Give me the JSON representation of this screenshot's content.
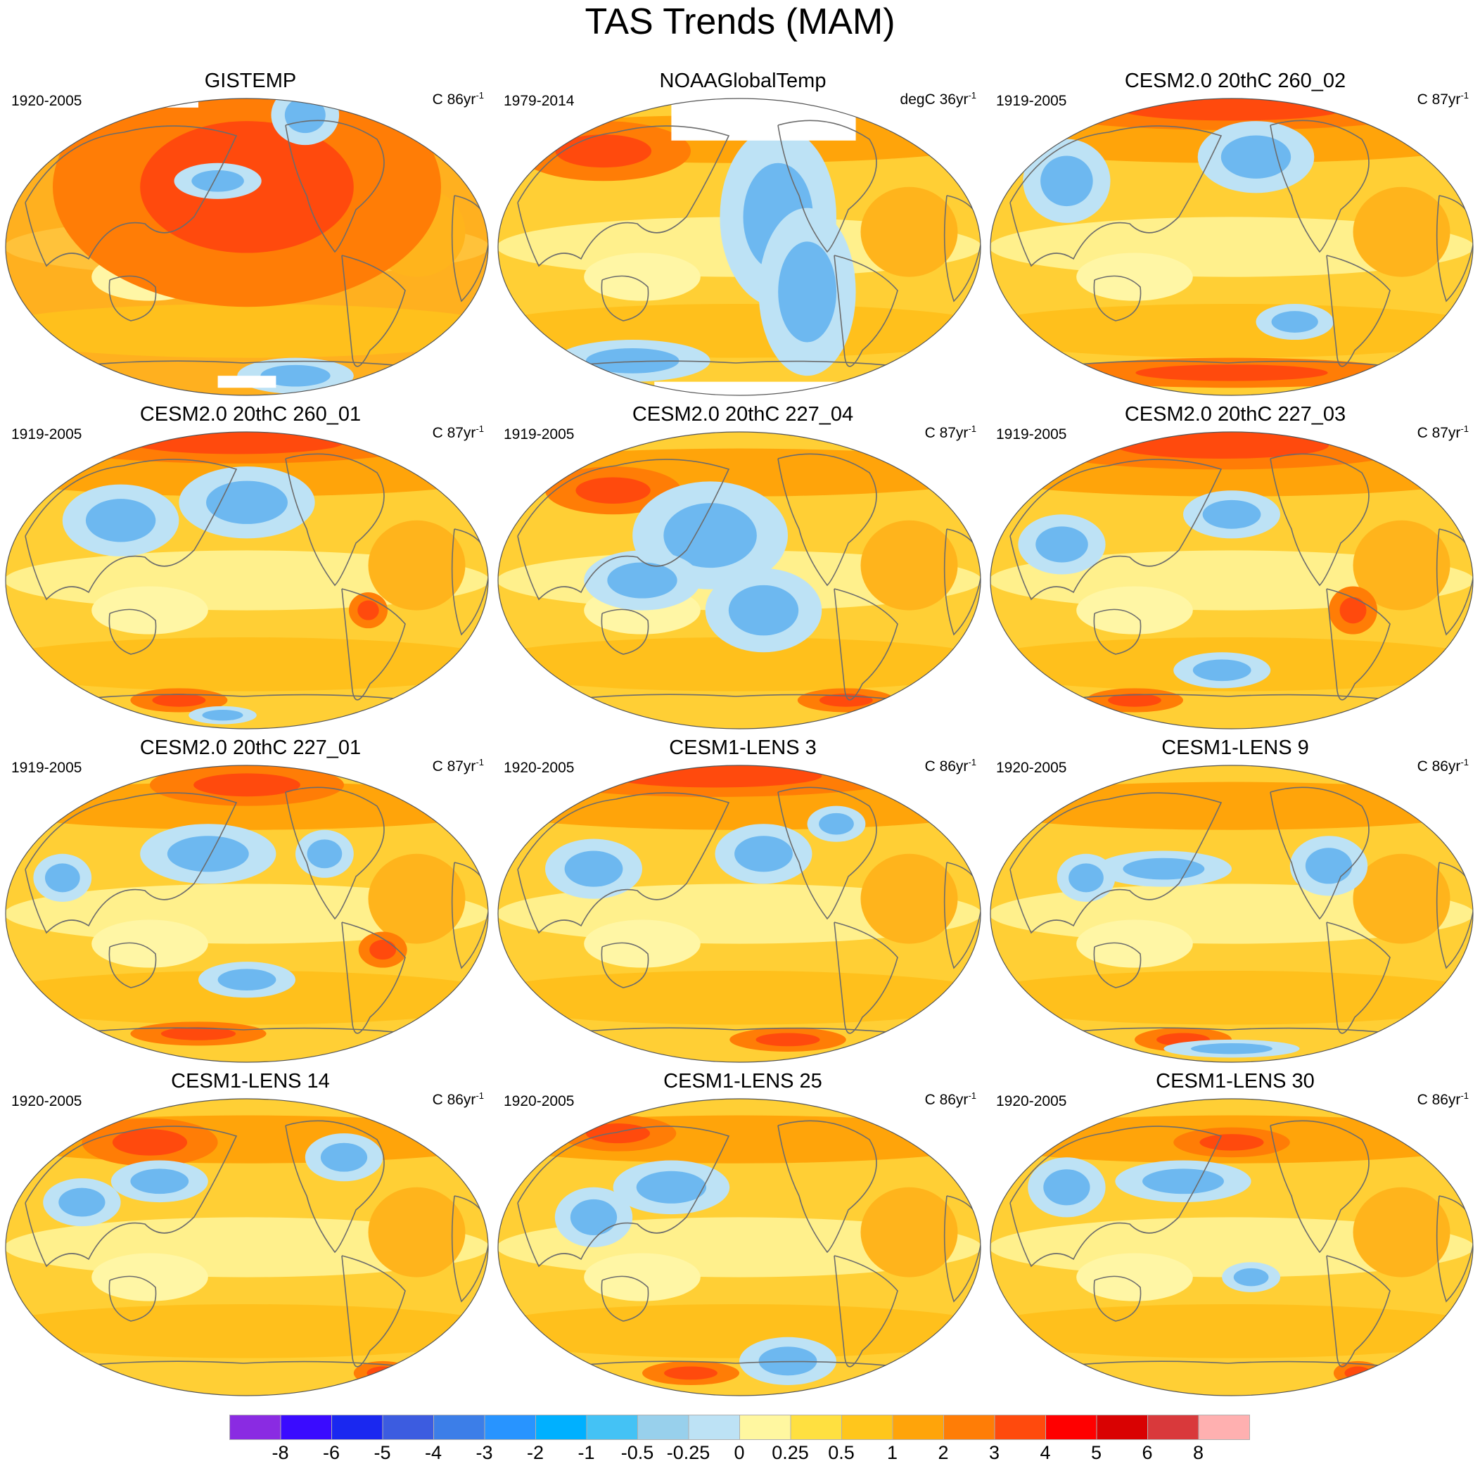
{
  "title": "TAS Trends (MAM)",
  "panels": [
    {
      "title": "GISTEMP",
      "period": "1920-2005",
      "units": "C 86yr",
      "exp": "-1",
      "style": "warm",
      "cool": [
        [
          0.62,
          0.06,
          0.07,
          0.1
        ],
        [
          0.44,
          0.28,
          0.09,
          0.06
        ],
        [
          0.6,
          0.93,
          0.12,
          0.06
        ],
        [
          0.88,
          0.93,
          0.09,
          0.05
        ]
      ],
      "hot": [
        [
          0.5,
          0.3,
          0.4,
          0.4
        ]
      ],
      "missing": [
        [
          0.36,
          0.005,
          0.08,
          0.03
        ],
        [
          0.5,
          0.93,
          0.12,
          0.04
        ],
        [
          0.92,
          0.92,
          0.05,
          0.03
        ]
      ]
    },
    {
      "title": "NOAAGlobalTemp",
      "period": "1979-2014",
      "units": "degC 36yr",
      "exp": "-1",
      "style": "mixed",
      "cool": [
        [
          0.58,
          0.4,
          0.12,
          0.3
        ],
        [
          0.64,
          0.65,
          0.1,
          0.28
        ],
        [
          0.28,
          0.88,
          0.16,
          0.07
        ]
      ],
      "hot": [
        [
          0.22,
          0.18,
          0.18,
          0.1
        ]
      ],
      "missing": [
        [
          0.55,
          0.005,
          0.38,
          0.14
        ],
        [
          0.55,
          0.95,
          0.45,
          0.1
        ]
      ]
    },
    {
      "title": "CESM2.0 20thC 260_02",
      "period": "1919-2005",
      "units": "C 87yr",
      "exp": "-1",
      "style": "mixed",
      "cool": [
        [
          0.16,
          0.28,
          0.09,
          0.14
        ],
        [
          0.55,
          0.2,
          0.12,
          0.12
        ],
        [
          0.63,
          0.75,
          0.08,
          0.06
        ]
      ],
      "hot": [
        [
          0.5,
          0.04,
          0.42,
          0.07
        ],
        [
          0.5,
          0.92,
          0.36,
          0.05
        ]
      ],
      "missing": []
    },
    {
      "title": "CESM2.0 20thC 260_01",
      "period": "1919-2005",
      "units": "C 87yr",
      "exp": "-1",
      "style": "mixed",
      "cool": [
        [
          0.24,
          0.3,
          0.12,
          0.12
        ],
        [
          0.5,
          0.24,
          0.14,
          0.12
        ],
        [
          0.45,
          0.95,
          0.07,
          0.03
        ]
      ],
      "hot": [
        [
          0.48,
          0.04,
          0.4,
          0.07
        ],
        [
          0.36,
          0.9,
          0.1,
          0.04
        ],
        [
          0.75,
          0.6,
          0.04,
          0.06
        ]
      ],
      "missing": []
    },
    {
      "title": "CESM2.0 20thC 227_04",
      "period": "1919-2005",
      "units": "C 87yr",
      "exp": "-1",
      "style": "mixed",
      "cool": [
        [
          0.44,
          0.35,
          0.16,
          0.18
        ],
        [
          0.55,
          0.6,
          0.12,
          0.14
        ],
        [
          0.3,
          0.5,
          0.12,
          0.1
        ]
      ],
      "hot": [
        [
          0.24,
          0.2,
          0.14,
          0.08
        ],
        [
          0.72,
          0.9,
          0.1,
          0.04
        ]
      ],
      "missing": []
    },
    {
      "title": "CESM2.0 20thC 227_03",
      "period": "1919-2005",
      "units": "C 87yr",
      "exp": "-1",
      "style": "mixed",
      "cool": [
        [
          0.5,
          0.28,
          0.1,
          0.08
        ],
        [
          0.15,
          0.38,
          0.09,
          0.1
        ],
        [
          0.48,
          0.8,
          0.1,
          0.06
        ]
      ],
      "hot": [
        [
          0.48,
          0.05,
          0.4,
          0.08
        ],
        [
          0.3,
          0.9,
          0.1,
          0.04
        ],
        [
          0.75,
          0.6,
          0.05,
          0.08
        ]
      ],
      "missing": []
    },
    {
      "title": "CESM2.0 20thC 227_01",
      "period": "1919-2005",
      "units": "C 87yr",
      "exp": "-1",
      "style": "mixed",
      "cool": [
        [
          0.42,
          0.3,
          0.14,
          0.1
        ],
        [
          0.66,
          0.3,
          0.06,
          0.08
        ],
        [
          0.12,
          0.38,
          0.06,
          0.08
        ],
        [
          0.5,
          0.72,
          0.1,
          0.06
        ]
      ],
      "hot": [
        [
          0.5,
          0.07,
          0.2,
          0.07
        ],
        [
          0.4,
          0.9,
          0.14,
          0.04
        ],
        [
          0.78,
          0.62,
          0.05,
          0.06
        ]
      ],
      "missing": []
    },
    {
      "title": "CESM1-LENS 3",
      "period": "1920-2005",
      "units": "C 86yr",
      "exp": "-1",
      "style": "mixed",
      "cool": [
        [
          0.55,
          0.3,
          0.1,
          0.1
        ],
        [
          0.2,
          0.35,
          0.1,
          0.1
        ],
        [
          0.7,
          0.2,
          0.06,
          0.06
        ]
      ],
      "hot": [
        [
          0.45,
          0.04,
          0.4,
          0.07
        ],
        [
          0.6,
          0.92,
          0.12,
          0.04
        ]
      ],
      "missing": []
    },
    {
      "title": "CESM1-LENS 9",
      "period": "1920-2005",
      "units": "C 86yr",
      "exp": "-1",
      "style": "mixed",
      "cool": [
        [
          0.36,
          0.35,
          0.14,
          0.06
        ],
        [
          0.7,
          0.34,
          0.08,
          0.1
        ],
        [
          0.2,
          0.38,
          0.06,
          0.08
        ],
        [
          0.5,
          0.95,
          0.14,
          0.03
        ]
      ],
      "hot": [
        [
          0.4,
          0.92,
          0.1,
          0.04
        ]
      ],
      "missing": []
    },
    {
      "title": "CESM1-LENS 14",
      "period": "1920-2005",
      "units": "C 86yr",
      "exp": "-1",
      "style": "mixed",
      "cool": [
        [
          0.32,
          0.28,
          0.1,
          0.07
        ],
        [
          0.7,
          0.2,
          0.08,
          0.08
        ],
        [
          0.16,
          0.35,
          0.08,
          0.08
        ]
      ],
      "hot": [
        [
          0.3,
          0.15,
          0.14,
          0.08
        ],
        [
          0.78,
          0.92,
          0.06,
          0.04
        ]
      ],
      "missing": []
    },
    {
      "title": "CESM1-LENS 25",
      "period": "1920-2005",
      "units": "C 86yr",
      "exp": "-1",
      "style": "mixed",
      "cool": [
        [
          0.36,
          0.3,
          0.12,
          0.09
        ],
        [
          0.2,
          0.4,
          0.08,
          0.1
        ],
        [
          0.6,
          0.88,
          0.1,
          0.08
        ]
      ],
      "hot": [
        [
          0.4,
          0.92,
          0.1,
          0.04
        ],
        [
          0.25,
          0.12,
          0.12,
          0.06
        ]
      ],
      "missing": []
    },
    {
      "title": "CESM1-LENS 30",
      "period": "1920-2005",
      "units": "C 86yr",
      "exp": "-1",
      "style": "mixed",
      "cool": [
        [
          0.4,
          0.28,
          0.14,
          0.07
        ],
        [
          0.16,
          0.3,
          0.08,
          0.1
        ],
        [
          0.54,
          0.6,
          0.06,
          0.05
        ]
      ],
      "hot": [
        [
          0.76,
          0.92,
          0.05,
          0.04
        ],
        [
          0.5,
          0.15,
          0.12,
          0.05
        ]
      ],
      "missing": []
    }
  ],
  "colorbar": {
    "colors": [
      "#8a2be2",
      "#3a0bff",
      "#1a28f0",
      "#3c5ce0",
      "#3c7ee8",
      "#2894ff",
      "#00b0ff",
      "#44c2f5",
      "#98d0ec",
      "#bde2f5",
      "#fff7a0",
      "#ffe040",
      "#ffc61c",
      "#ffa40a",
      "#ff7d06",
      "#ff4a0d",
      "#ff0000",
      "#d90202",
      "#d9393b",
      "#ffb0b0"
    ],
    "labels": [
      "-8",
      "-6",
      "-5",
      "-4",
      "-3",
      "-2",
      "-1",
      "-0.5",
      "-0.25",
      "0",
      "0.25",
      "0.5",
      "1",
      "2",
      "3",
      "4",
      "5",
      "6",
      "8"
    ]
  }
}
